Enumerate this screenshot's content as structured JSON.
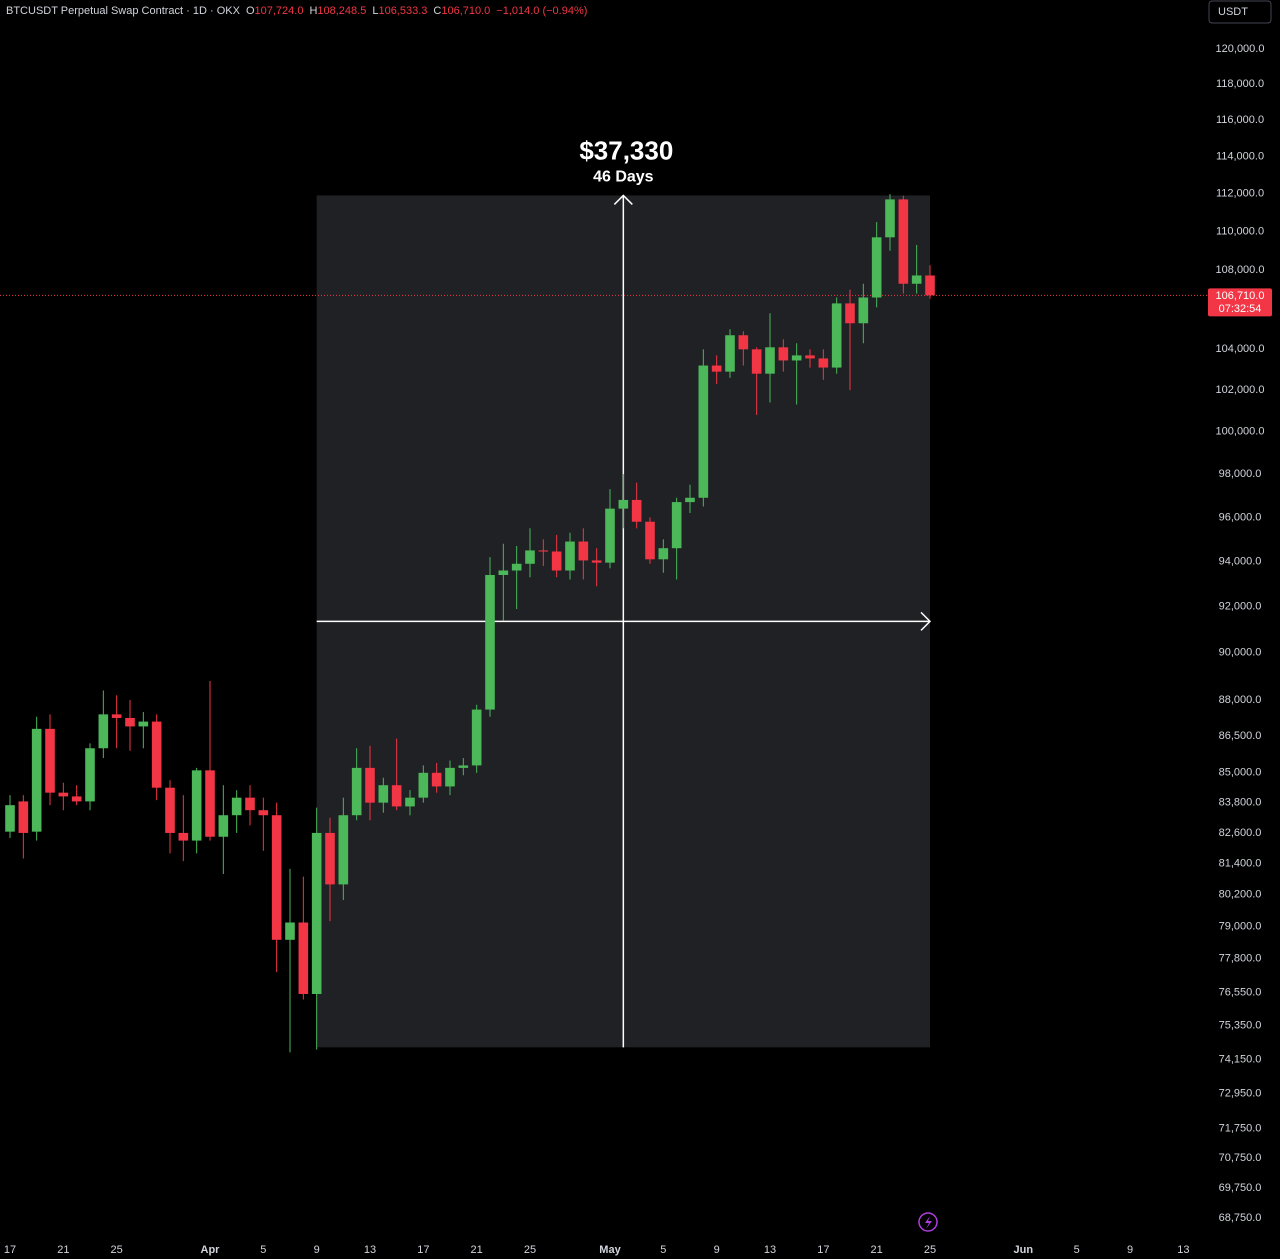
{
  "chart_data": {
    "type": "candlestick",
    "header": {
      "symbol": "BTCUSDT Perpetual Swap Contract · 1D · OKX",
      "o": "O",
      "open": "107,724.0",
      "h": "H",
      "high": "108,248.5",
      "l": "L",
      "low": "106,533.3",
      "c": "C",
      "close": "106,710.0",
      "change": "−1,014.0 (−0.94%)"
    },
    "currency": "USDT",
    "log_scale": true,
    "up_color": "#4cb85a",
    "down_color": "#f23645",
    "x": [
      0,
      1,
      2,
      3,
      4,
      5,
      6,
      7,
      8,
      9,
      10,
      11,
      12,
      13,
      14,
      15,
      16,
      17,
      18,
      19,
      20,
      21,
      22,
      23,
      24,
      25,
      26,
      27,
      28,
      29,
      30,
      31,
      32,
      33,
      34,
      35,
      36,
      37,
      38,
      39,
      40,
      41,
      42,
      43,
      44,
      45,
      46,
      47,
      48,
      49,
      50,
      51,
      52,
      53,
      54,
      55,
      56,
      57,
      58,
      59,
      60,
      61,
      62,
      63,
      64,
      65,
      66,
      67,
      68,
      69
    ],
    "open": [
      82650,
      83850,
      82650,
      86800,
      84200,
      84050,
      83850,
      86000,
      87400,
      87250,
      86900,
      87100,
      84400,
      82600,
      82300,
      85100,
      82450,
      83300,
      84000,
      83500,
      83300,
      78500,
      79150,
      76500,
      82600,
      80600,
      83300,
      85200,
      83800,
      84500,
      83650,
      84000,
      85000,
      84450,
      85200,
      85300,
      87600,
      93400,
      93600,
      93900,
      94500,
      94450,
      93600,
      94900,
      94050,
      93950,
      96400,
      96800,
      95800,
      94100,
      94600,
      96700,
      96900,
      103200,
      102900,
      104700,
      104000,
      102800,
      104100,
      103450,
      103700,
      103550,
      103100,
      106300,
      105300,
      106600,
      109700,
      111700,
      107300,
      107724
    ],
    "high": [
      84100,
      84100,
      87300,
      87400,
      84600,
      84500,
      86200,
      88400,
      88200,
      88000,
      87500,
      87400,
      84700,
      84100,
      85200,
      88800,
      84500,
      84300,
      84500,
      84000,
      83800,
      81200,
      80900,
      83600,
      83200,
      84000,
      86000,
      86100,
      84800,
      86400,
      84300,
      85300,
      85400,
      85500,
      85600,
      87800,
      94200,
      94800,
      94700,
      95500,
      95000,
      95200,
      95300,
      95500,
      94600,
      97300,
      98000,
      97600,
      96000,
      95000,
      96900,
      97500,
      104000,
      103700,
      105000,
      104900,
      104100,
      105800,
      104500,
      104300,
      104000,
      104000,
      106600,
      107000,
      107300,
      110500,
      111980,
      111900,
      109300,
      108248.5
    ],
    "low": [
      82400,
      81600,
      82300,
      83700,
      83500,
      83700,
      83500,
      85600,
      86000,
      85900,
      86000,
      83900,
      81800,
      81500,
      81800,
      82300,
      81000,
      82600,
      82900,
      81900,
      77300,
      74400,
      76300,
      74500,
      79200,
      80000,
      83100,
      83100,
      83400,
      83500,
      83300,
      83800,
      84200,
      84100,
      84900,
      85000,
      87300,
      91400,
      91900,
      93300,
      93800,
      93300,
      93200,
      93200,
      92900,
      93700,
      95500,
      95500,
      93900,
      93500,
      93200,
      96200,
      96500,
      102300,
      102600,
      103200,
      100800,
      101400,
      102900,
      101300,
      103100,
      102500,
      102800,
      102000,
      104300,
      106100,
      109000,
      106800,
      106800,
      106533.3
    ],
    "close": [
      83700,
      82600,
      86800,
      84200,
      84050,
      83850,
      86000,
      87400,
      87250,
      86900,
      87100,
      84400,
      82600,
      82300,
      85100,
      82450,
      83300,
      84000,
      83500,
      83300,
      78500,
      79150,
      76500,
      82600,
      80600,
      83300,
      85200,
      83800,
      84500,
      83650,
      84000,
      85000,
      84450,
      85200,
      85300,
      87600,
      93400,
      93600,
      93900,
      94500,
      94450,
      93600,
      94900,
      94050,
      93950,
      96400,
      96800,
      95800,
      94100,
      94600,
      96700,
      96900,
      103200,
      102900,
      104700,
      104000,
      102800,
      104100,
      103450,
      103700,
      103550,
      103100,
      106300,
      105300,
      106600,
      109700,
      111700,
      107300,
      107724,
      106710
    ],
    "xlim": [
      -0.75,
      89.25
    ],
    "ylim": [
      68040,
      122830
    ],
    "xticks": [
      {
        "value": 0,
        "label": "17"
      },
      {
        "value": 4,
        "label": "21"
      },
      {
        "value": 8,
        "label": "25"
      },
      {
        "value": 15,
        "label": "Apr"
      },
      {
        "value": 19,
        "label": "5"
      },
      {
        "value": 23,
        "label": "9"
      },
      {
        "value": 27,
        "label": "13"
      },
      {
        "value": 31,
        "label": "17"
      },
      {
        "value": 35,
        "label": "21"
      },
      {
        "value": 39,
        "label": "25"
      },
      {
        "value": 45,
        "label": "May"
      },
      {
        "value": 49,
        "label": "5"
      },
      {
        "value": 53,
        "label": "9"
      },
      {
        "value": 57,
        "label": "13"
      },
      {
        "value": 61,
        "label": "17"
      },
      {
        "value": 65,
        "label": "21"
      },
      {
        "value": 69,
        "label": "25"
      },
      {
        "value": 76,
        "label": "Jun"
      },
      {
        "value": 80,
        "label": "5"
      },
      {
        "value": 84,
        "label": "9"
      },
      {
        "value": 88,
        "label": "13"
      }
    ],
    "yticks": [
      {
        "value": 120000,
        "label": "120,000.0"
      },
      {
        "value": 118000,
        "label": "118,000.0"
      },
      {
        "value": 116000,
        "label": "116,000.0"
      },
      {
        "value": 114000,
        "label": "114,000.0"
      },
      {
        "value": 112000,
        "label": "112,000.0"
      },
      {
        "value": 110000,
        "label": "110,000.0"
      },
      {
        "value": 108000,
        "label": "108,000.0"
      },
      {
        "value": 104000,
        "label": "104,000.0"
      },
      {
        "value": 102000,
        "label": "102,000.0"
      },
      {
        "value": 100000,
        "label": "100,000.0"
      },
      {
        "value": 98000,
        "label": "98,000.0"
      },
      {
        "value": 96000,
        "label": "96,000.0"
      },
      {
        "value": 94000,
        "label": "94,000.0"
      },
      {
        "value": 92000,
        "label": "92,000.0"
      },
      {
        "value": 90000,
        "label": "90,000.0"
      },
      {
        "value": 88000,
        "label": "88,000.0"
      },
      {
        "value": 86500,
        "label": "86,500.0"
      },
      {
        "value": 85000,
        "label": "85,000.0"
      },
      {
        "value": 83800,
        "label": "83,800.0"
      },
      {
        "value": 82600,
        "label": "82,600.0"
      },
      {
        "value": 81400,
        "label": "81,400.0"
      },
      {
        "value": 80200,
        "label": "80,200.0"
      },
      {
        "value": 79000,
        "label": "79,000.0"
      },
      {
        "value": 77800,
        "label": "77,800.0"
      },
      {
        "value": 76550,
        "label": "76,550.0"
      },
      {
        "value": 75350,
        "label": "75,350.0"
      },
      {
        "value": 74150,
        "label": "74,150.0"
      },
      {
        "value": 72950,
        "label": "72,950.0"
      },
      {
        "value": 71750,
        "label": "71,750.0"
      },
      {
        "value": 70750,
        "label": "70,750.0"
      },
      {
        "value": 69750,
        "label": "69,750.0"
      },
      {
        "value": 68750,
        "label": "68,750.0"
      }
    ],
    "last_price": {
      "value": 106710,
      "label": "106,710.0",
      "countdown": "07:32:54"
    },
    "measure": {
      "label": "$37,330",
      "sublabel": "46 Days",
      "x": [
        23,
        69
      ],
      "y": [
        74580,
        111910
      ]
    }
  }
}
